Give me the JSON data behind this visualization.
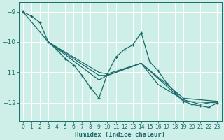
{
  "xlabel": "Humidex (Indice chaleur)",
  "background_color": "#ceeee8",
  "grid_color": "#b0ddd8",
  "line_color": "#1a6b6b",
  "xlim": [
    -0.5,
    23.5
  ],
  "ylim": [
    -12.6,
    -8.7
  ],
  "xticks": [
    0,
    1,
    2,
    3,
    4,
    5,
    6,
    7,
    8,
    9,
    10,
    11,
    12,
    13,
    14,
    15,
    16,
    17,
    18,
    19,
    20,
    21,
    22,
    23
  ],
  "yticks": [
    -9,
    -10,
    -11,
    -12
  ],
  "series": [
    {
      "x": [
        0,
        1,
        2,
        3,
        4,
        5,
        6,
        7,
        8,
        9,
        10,
        11,
        12,
        13,
        14,
        15,
        16,
        17,
        18,
        19,
        20,
        21,
        22,
        23
      ],
      "y": [
        -9.0,
        -9.15,
        -9.35,
        -10.0,
        -10.25,
        -10.55,
        -10.75,
        -11.1,
        -11.5,
        -11.85,
        -11.05,
        -10.5,
        -10.25,
        -10.1,
        -9.7,
        -10.65,
        -10.95,
        -11.35,
        -11.65,
        -11.95,
        -12.05,
        -12.1,
        -12.15,
        -12.0
      ],
      "marker": true
    },
    {
      "x": [
        0,
        3,
        9,
        10,
        14,
        16,
        19,
        21,
        23
      ],
      "y": [
        -9.0,
        -10.0,
        -11.0,
        -11.05,
        -10.7,
        -11.4,
        -11.9,
        -12.05,
        -11.95
      ],
      "marker": false
    },
    {
      "x": [
        3,
        9,
        10,
        14,
        19,
        23
      ],
      "y": [
        -10.0,
        -11.1,
        -11.1,
        -10.7,
        -11.85,
        -11.95
      ],
      "marker": false
    },
    {
      "x": [
        3,
        9,
        10,
        14,
        19,
        23
      ],
      "y": [
        -10.0,
        -11.25,
        -11.1,
        -10.7,
        -11.95,
        -12.0
      ],
      "marker": false
    }
  ]
}
